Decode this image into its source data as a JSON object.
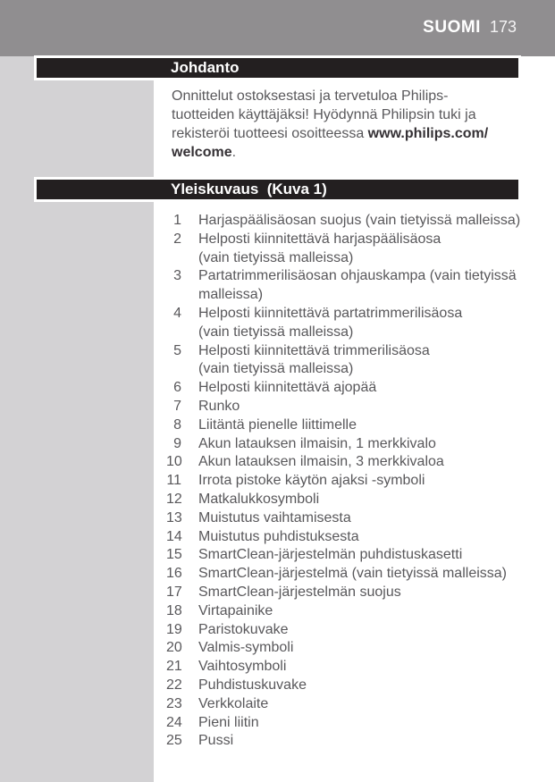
{
  "header": {
    "language": "SUOMI",
    "page_number": "173"
  },
  "sections": {
    "johdanto": {
      "title": "Johdanto",
      "body_regular": "Onnittelut ostoksestasi ja tervetuloa Philips-\ntuotteiden käyttäjäksi! Hyödynnä Philipsin tuki ja\nrekisteröi tuotteesi osoitteessa ",
      "body_bold": "www.philips.com/\nwelcome",
      "body_end": "."
    },
    "yleiskuvaus": {
      "title": "Yleiskuvaus  (Kuva 1)",
      "items": [
        {
          "num": "1",
          "text": "Harjaspäälisäosan suojus (vain tietyissä malleissa)"
        },
        {
          "num": "2",
          "text": "Helposti kiinnitettävä harjaspäälisäosa\n(vain tietyissä malleissa)"
        },
        {
          "num": "3",
          "text": "Partatrimmerilisäosan ohjauskampa (vain tietyissä\nmalleissa)"
        },
        {
          "num": "4",
          "text": "Helposti kiinnitettävä partatrimmerilisäosa\n(vain tietyissä malleissa)"
        },
        {
          "num": "5",
          "text": "Helposti kiinnitettävä trimmerilisäosa\n(vain tietyissä malleissa)"
        },
        {
          "num": "6",
          "text": "Helposti kiinnitettävä ajopää"
        },
        {
          "num": "7",
          "text": "Runko"
        },
        {
          "num": "8",
          "text": "Liitäntä pienelle liittimelle"
        },
        {
          "num": "9",
          "text": "Akun latauksen ilmaisin, 1 merkkivalo"
        },
        {
          "num": "10",
          "text": "Akun latauksen ilmaisin, 3 merkkivaloa"
        },
        {
          "num": "11",
          "text": "Irrota pistoke käytön ajaksi -symboli"
        },
        {
          "num": "12",
          "text": "Matkalukkosymboli"
        },
        {
          "num": "13",
          "text": "Muistutus vaihtamisesta"
        },
        {
          "num": "14",
          "text": "Muistutus puhdistuksesta"
        },
        {
          "num": "15",
          "text": "SmartClean-järjestelmän puhdistuskasetti"
        },
        {
          "num": "16",
          "text": "SmartClean-järjestelmä (vain tietyissä malleissa)"
        },
        {
          "num": "17",
          "text": "SmartClean-järjestelmän suojus"
        },
        {
          "num": "18",
          "text": "Virtapainike"
        },
        {
          "num": "19",
          "text": "Paristokuvake"
        },
        {
          "num": "20",
          "text": "Valmis-symboli"
        },
        {
          "num": "21",
          "text": "Vaihtosymboli"
        },
        {
          "num": "22",
          "text": "Puhdistuskuvake"
        },
        {
          "num": "23",
          "text": "Verkkolaite"
        },
        {
          "num": "24",
          "text": "Pieni liitin"
        },
        {
          "num": "25",
          "text": "Pussi"
        }
      ]
    }
  },
  "colors": {
    "top_band": "#908e90",
    "sidebar": "#d3d2d4",
    "section_bar": "#231f20",
    "body_text": "#59585b"
  }
}
